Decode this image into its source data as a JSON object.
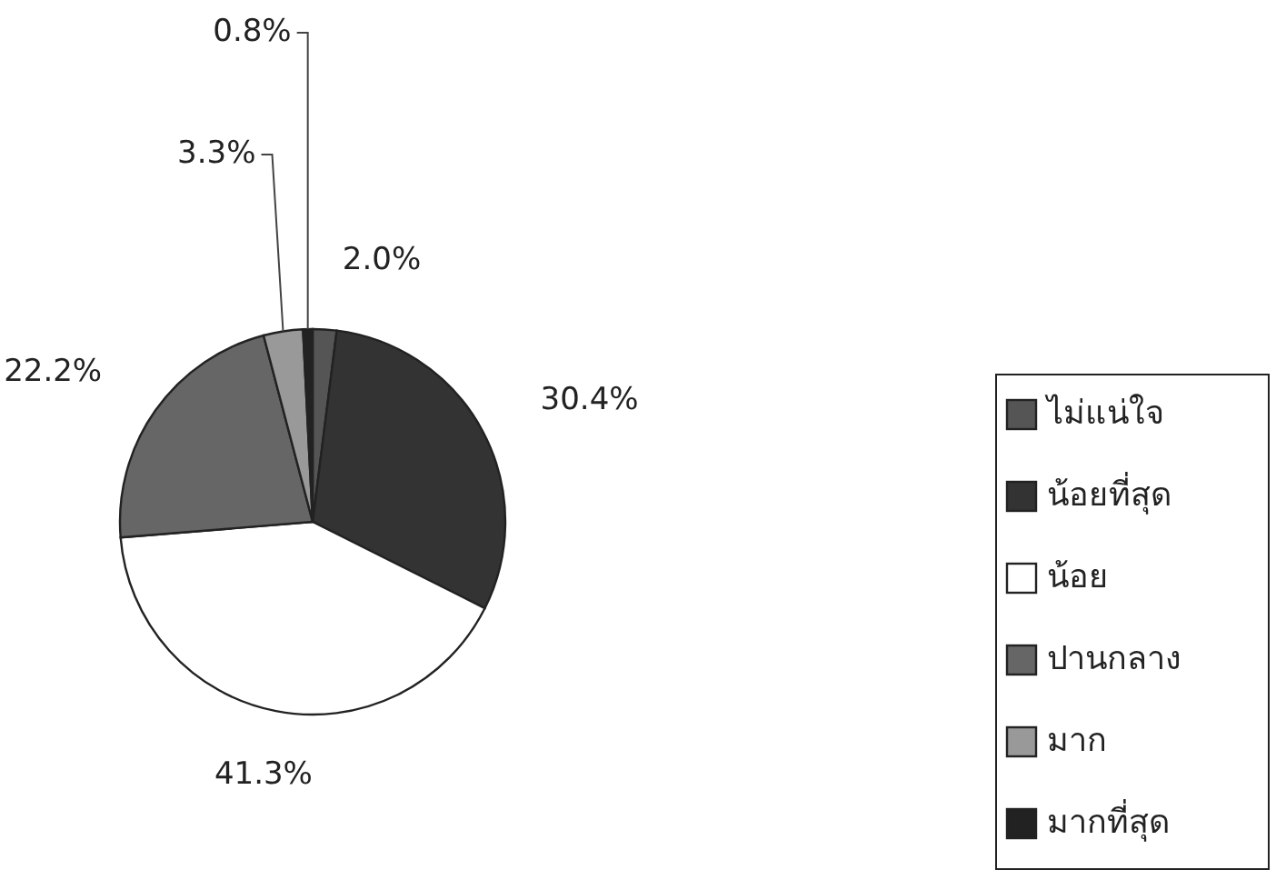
{
  "chart_data": {
    "type": "pie",
    "categories": [
      "ไม่แน่ใจ",
      "น้อยที่สุด",
      "น้อย",
      "ปานกลาง",
      "มาก",
      "มากที่สุด"
    ],
    "values": [
      2.0,
      30.4,
      41.3,
      22.2,
      3.3,
      0.8
    ],
    "value_labels": [
      "2.0%",
      "30.4%",
      "41.3%",
      "22.2%",
      "3.3%",
      "0.8%"
    ],
    "colors": [
      "#555555",
      "#333333",
      "#ffffff",
      "#666666",
      "#999999",
      "#222222"
    ],
    "legend": "right"
  }
}
